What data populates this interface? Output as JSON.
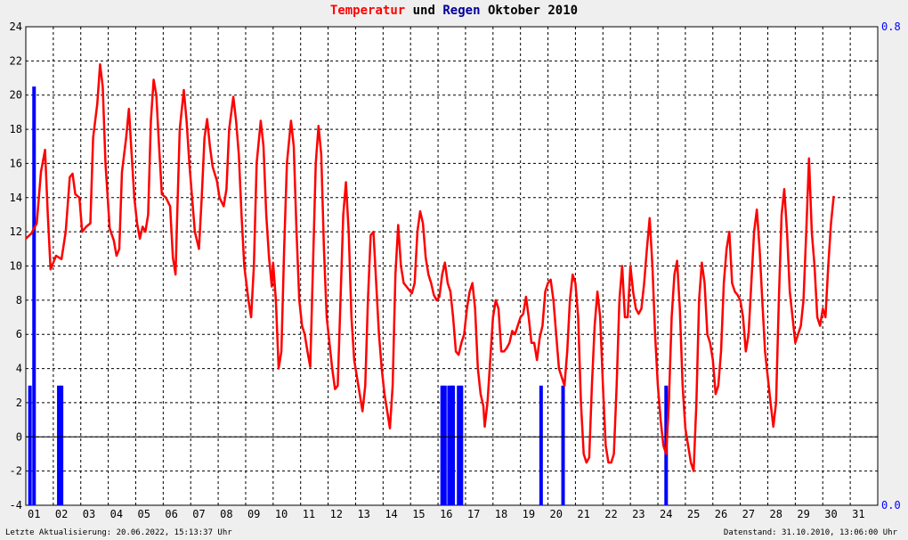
{
  "chart_data": {
    "type": "line",
    "title": {
      "part1": "Temperatur",
      "part1_color": "#ff0000",
      "part2": "und",
      "part3": "Regen",
      "part3_color": "#000099",
      "part4": "Oktober 2010"
    },
    "x_tick_labels": [
      "01",
      "02",
      "03",
      "04",
      "05",
      "06",
      "07",
      "08",
      "09",
      "10",
      "11",
      "12",
      "13",
      "14",
      "15",
      "16",
      "17",
      "18",
      "19",
      "20",
      "21",
      "22",
      "23",
      "24",
      "25",
      "26",
      "27",
      "28",
      "29",
      "30",
      "31"
    ],
    "x_range_days": [
      1,
      32
    ],
    "y_left": {
      "min": -4,
      "max": 24,
      "ticks": [
        24,
        22,
        20,
        18,
        16,
        14,
        12,
        10,
        8,
        6,
        4,
        2,
        0,
        -2,
        -4
      ]
    },
    "y_right": {
      "min": 0.0,
      "max": 0.8,
      "ticks": [
        "0.8",
        "0.0"
      ],
      "color": "#0000ff"
    },
    "grid": true,
    "series": [
      {
        "color": "#ff0000",
        "axis": "left",
        "kind": "line",
        "points": [
          [
            1.0,
            11.6
          ],
          [
            1.2,
            11.9
          ],
          [
            1.4,
            12.5
          ],
          [
            1.55,
            15.5
          ],
          [
            1.7,
            16.8
          ],
          [
            1.8,
            13.0
          ],
          [
            1.9,
            9.8
          ],
          [
            2.0,
            10.2
          ],
          [
            2.1,
            10.6
          ],
          [
            2.3,
            10.4
          ],
          [
            2.45,
            12.0
          ],
          [
            2.6,
            15.2
          ],
          [
            2.7,
            15.4
          ],
          [
            2.8,
            14.2
          ],
          [
            2.95,
            14.0
          ],
          [
            3.05,
            12.0
          ],
          [
            3.2,
            12.3
          ],
          [
            3.35,
            12.5
          ],
          [
            3.45,
            17.5
          ],
          [
            3.6,
            19.5
          ],
          [
            3.7,
            21.8
          ],
          [
            3.8,
            20.5
          ],
          [
            3.9,
            16.0
          ],
          [
            4.05,
            12.2
          ],
          [
            4.2,
            11.5
          ],
          [
            4.3,
            10.6
          ],
          [
            4.4,
            11.0
          ],
          [
            4.5,
            15.5
          ],
          [
            4.65,
            17.5
          ],
          [
            4.75,
            19.2
          ],
          [
            4.85,
            16.5
          ],
          [
            4.95,
            14.0
          ],
          [
            5.05,
            12.5
          ],
          [
            5.15,
            11.6
          ],
          [
            5.25,
            12.3
          ],
          [
            5.35,
            12.0
          ],
          [
            5.45,
            13.0
          ],
          [
            5.55,
            18.5
          ],
          [
            5.65,
            20.9
          ],
          [
            5.75,
            20.0
          ],
          [
            5.85,
            17.0
          ],
          [
            5.95,
            14.2
          ],
          [
            6.1,
            14.0
          ],
          [
            6.25,
            13.5
          ],
          [
            6.35,
            10.5
          ],
          [
            6.45,
            9.5
          ],
          [
            6.5,
            12.5
          ],
          [
            6.6,
            18.0
          ],
          [
            6.75,
            20.3
          ],
          [
            6.85,
            18.5
          ],
          [
            6.95,
            16.0
          ],
          [
            7.05,
            14.0
          ],
          [
            7.15,
            12.0
          ],
          [
            7.3,
            11.0
          ],
          [
            7.4,
            14.0
          ],
          [
            7.5,
            17.5
          ],
          [
            7.6,
            18.6
          ],
          [
            7.7,
            17.0
          ],
          [
            7.8,
            15.8
          ],
          [
            7.95,
            15.0
          ],
          [
            8.05,
            14.0
          ],
          [
            8.2,
            13.5
          ],
          [
            8.3,
            14.5
          ],
          [
            8.4,
            18.0
          ],
          [
            8.55,
            19.9
          ],
          [
            8.65,
            18.5
          ],
          [
            8.75,
            16.5
          ],
          [
            8.85,
            13.0
          ],
          [
            8.95,
            10.0
          ],
          [
            9.1,
            8.0
          ],
          [
            9.2,
            7.0
          ],
          [
            9.3,
            10.0
          ],
          [
            9.4,
            16.0
          ],
          [
            9.55,
            18.5
          ],
          [
            9.65,
            17.0
          ],
          [
            9.75,
            13.0
          ],
          [
            9.85,
            10.5
          ],
          [
            9.95,
            8.8
          ],
          [
            10.0,
            10.2
          ],
          [
            10.1,
            8.0
          ],
          [
            10.2,
            4.0
          ],
          [
            10.3,
            5.0
          ],
          [
            10.4,
            11.0
          ],
          [
            10.5,
            16.0
          ],
          [
            10.65,
            18.5
          ],
          [
            10.75,
            17.0
          ],
          [
            10.85,
            12.0
          ],
          [
            10.95,
            8.0
          ],
          [
            11.05,
            6.5
          ],
          [
            11.15,
            6.0
          ],
          [
            11.25,
            5.0
          ],
          [
            11.35,
            4.1
          ],
          [
            11.45,
            10.0
          ],
          [
            11.55,
            16.0
          ],
          [
            11.65,
            18.2
          ],
          [
            11.75,
            16.5
          ],
          [
            11.85,
            11.0
          ],
          [
            11.95,
            7.0
          ],
          [
            12.05,
            5.5
          ],
          [
            12.15,
            4.0
          ],
          [
            12.25,
            2.8
          ],
          [
            12.35,
            3.0
          ],
          [
            12.45,
            8.0
          ],
          [
            12.55,
            13.0
          ],
          [
            12.65,
            14.9
          ],
          [
            12.75,
            12.0
          ],
          [
            12.85,
            7.0
          ],
          [
            12.95,
            4.5
          ],
          [
            13.05,
            3.5
          ],
          [
            13.15,
            2.5
          ],
          [
            13.25,
            1.5
          ],
          [
            13.35,
            3.0
          ],
          [
            13.45,
            8.0
          ],
          [
            13.55,
            11.8
          ],
          [
            13.65,
            12.0
          ],
          [
            13.75,
            9.0
          ],
          [
            13.85,
            6.0
          ],
          [
            13.95,
            4.0
          ],
          [
            14.05,
            2.5
          ],
          [
            14.15,
            1.5
          ],
          [
            14.25,
            0.5
          ],
          [
            14.35,
            3.0
          ],
          [
            14.45,
            9.5
          ],
          [
            14.55,
            12.4
          ],
          [
            14.65,
            10.0
          ],
          [
            14.75,
            9.0
          ],
          [
            14.85,
            8.8
          ],
          [
            14.95,
            8.6
          ],
          [
            15.05,
            8.4
          ],
          [
            15.15,
            9.0
          ],
          [
            15.25,
            12.0
          ],
          [
            15.35,
            13.2
          ],
          [
            15.45,
            12.5
          ],
          [
            15.55,
            10.5
          ],
          [
            15.65,
            9.5
          ],
          [
            15.75,
            9.0
          ],
          [
            15.85,
            8.3
          ],
          [
            15.95,
            8.0
          ],
          [
            16.05,
            8.2
          ],
          [
            16.15,
            9.5
          ],
          [
            16.25,
            10.2
          ],
          [
            16.35,
            9.0
          ],
          [
            16.45,
            8.5
          ],
          [
            16.55,
            7.0
          ],
          [
            16.65,
            5.0
          ],
          [
            16.75,
            4.8
          ],
          [
            16.85,
            5.5
          ],
          [
            16.95,
            6.0
          ],
          [
            17.05,
            7.5
          ],
          [
            17.15,
            8.5
          ],
          [
            17.25,
            9.0
          ],
          [
            17.35,
            7.5
          ],
          [
            17.45,
            4.0
          ],
          [
            17.55,
            2.5
          ],
          [
            17.65,
            1.8
          ],
          [
            17.7,
            0.6
          ],
          [
            17.8,
            2.0
          ],
          [
            17.9,
            4.5
          ],
          [
            18.0,
            7.0
          ],
          [
            18.1,
            8.0
          ],
          [
            18.2,
            7.5
          ],
          [
            18.3,
            5.0
          ],
          [
            18.4,
            5.0
          ],
          [
            18.5,
            5.2
          ],
          [
            18.6,
            5.5
          ],
          [
            18.7,
            6.2
          ],
          [
            18.8,
            6.0
          ],
          [
            18.9,
            6.5
          ],
          [
            19.0,
            7.0
          ],
          [
            19.1,
            7.2
          ],
          [
            19.2,
            8.2
          ],
          [
            19.3,
            7.0
          ],
          [
            19.4,
            5.5
          ],
          [
            19.5,
            5.5
          ],
          [
            19.6,
            4.5
          ],
          [
            19.7,
            5.8
          ],
          [
            19.8,
            6.5
          ],
          [
            19.9,
            8.5
          ],
          [
            20.0,
            9.0
          ],
          [
            20.1,
            9.2
          ],
          [
            20.2,
            8.0
          ],
          [
            20.3,
            6.0
          ],
          [
            20.4,
            4.0
          ],
          [
            20.5,
            3.5
          ],
          [
            20.6,
            3.0
          ],
          [
            20.7,
            5.0
          ],
          [
            20.8,
            8.0
          ],
          [
            20.9,
            9.5
          ],
          [
            21.0,
            9.0
          ],
          [
            21.1,
            7.0
          ],
          [
            21.2,
            2.0
          ],
          [
            21.3,
            -1.0
          ],
          [
            21.4,
            -1.5
          ],
          [
            21.5,
            -1.2
          ],
          [
            21.6,
            3.0
          ],
          [
            21.7,
            6.5
          ],
          [
            21.8,
            8.5
          ],
          [
            21.9,
            7.0
          ],
          [
            22.0,
            3.0
          ],
          [
            22.1,
            -0.5
          ],
          [
            22.2,
            -1.5
          ],
          [
            22.3,
            -1.5
          ],
          [
            22.4,
            -1.0
          ],
          [
            22.5,
            3.0
          ],
          [
            22.6,
            8.0
          ],
          [
            22.7,
            10.0
          ],
          [
            22.8,
            7.0
          ],
          [
            22.9,
            7.0
          ],
          [
            23.0,
            10.0
          ],
          [
            23.1,
            8.5
          ],
          [
            23.2,
            7.5
          ],
          [
            23.3,
            7.2
          ],
          [
            23.4,
            7.5
          ],
          [
            23.5,
            9.0
          ],
          [
            23.6,
            11.0
          ],
          [
            23.7,
            12.8
          ],
          [
            23.8,
            10.0
          ],
          [
            23.9,
            6.0
          ],
          [
            24.0,
            3.0
          ],
          [
            24.1,
            1.0
          ],
          [
            24.2,
            -0.5
          ],
          [
            24.3,
            -1.0
          ],
          [
            24.4,
            2.0
          ],
          [
            24.5,
            7.0
          ],
          [
            24.6,
            9.5
          ],
          [
            24.7,
            10.3
          ],
          [
            24.8,
            7.5
          ],
          [
            24.9,
            3.0
          ],
          [
            25.0,
            0.5
          ],
          [
            25.1,
            -0.5
          ],
          [
            25.2,
            -1.5
          ],
          [
            25.3,
            -2.0
          ],
          [
            25.4,
            2.0
          ],
          [
            25.5,
            8.0
          ],
          [
            25.6,
            10.2
          ],
          [
            25.7,
            9.0
          ],
          [
            25.8,
            6.0
          ],
          [
            25.9,
            5.5
          ],
          [
            26.0,
            4.5
          ],
          [
            26.1,
            2.5
          ],
          [
            26.2,
            3.0
          ],
          [
            26.3,
            5.0
          ],
          [
            26.4,
            9.0
          ],
          [
            26.5,
            11.0
          ],
          [
            26.6,
            12.0
          ],
          [
            26.7,
            9.0
          ],
          [
            26.8,
            8.5
          ],
          [
            26.9,
            8.3
          ],
          [
            27.0,
            8.0
          ],
          [
            27.1,
            7.0
          ],
          [
            27.2,
            5.0
          ],
          [
            27.3,
            6.0
          ],
          [
            27.4,
            9.0
          ],
          [
            27.5,
            12.0
          ],
          [
            27.6,
            13.3
          ],
          [
            27.7,
            11.0
          ],
          [
            27.8,
            8.0
          ],
          [
            27.9,
            5.0
          ],
          [
            28.0,
            3.5
          ],
          [
            28.1,
            2.0
          ],
          [
            28.2,
            0.6
          ],
          [
            28.3,
            2.0
          ],
          [
            28.4,
            8.0
          ],
          [
            28.5,
            13.0
          ],
          [
            28.6,
            14.5
          ],
          [
            28.7,
            12.0
          ],
          [
            28.8,
            8.5
          ],
          [
            28.9,
            7.0
          ],
          [
            29.0,
            5.5
          ],
          [
            29.1,
            6.0
          ],
          [
            29.2,
            6.5
          ],
          [
            29.3,
            8.0
          ],
          [
            29.4,
            12.0
          ],
          [
            29.5,
            16.3
          ],
          [
            29.6,
            12.0
          ],
          [
            29.7,
            10.0
          ],
          [
            29.8,
            7.0
          ],
          [
            29.9,
            6.5
          ],
          [
            30.0,
            7.5
          ],
          [
            30.1,
            7.0
          ],
          [
            30.2,
            10.0
          ],
          [
            30.3,
            12.5
          ],
          [
            30.4,
            14.1
          ]
        ]
      },
      {
        "color": "#0000ff",
        "axis": "right",
        "kind": "bar",
        "bars": [
          [
            1.15,
            0.2
          ],
          [
            1.3,
            0.7
          ],
          [
            2.2,
            0.2
          ],
          [
            2.3,
            0.2
          ],
          [
            16.15,
            0.2
          ],
          [
            16.25,
            0.2
          ],
          [
            16.4,
            0.2
          ],
          [
            16.5,
            0.2
          ],
          [
            16.55,
            0.2
          ],
          [
            16.75,
            0.2
          ],
          [
            16.85,
            0.2
          ],
          [
            19.75,
            0.2
          ],
          [
            20.55,
            0.2
          ],
          [
            24.3,
            0.2
          ]
        ]
      }
    ]
  },
  "footer": {
    "left": "Letzte Aktualisierung: 20.06.2022, 15:13:37 Uhr",
    "right": "Datenstand: 31.10.2010, 13:06:00 Uhr"
  }
}
